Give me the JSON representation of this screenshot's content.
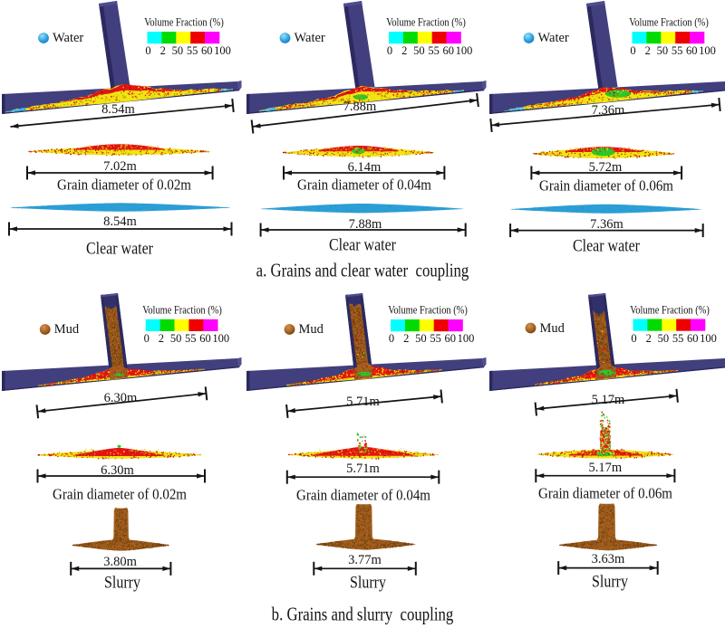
{
  "colors": {
    "background": "#ffffff",
    "text": "#141414",
    "structure": "#413f7d",
    "structure_dark": "#2b295e",
    "structure_light": "#4f4c90",
    "water_fill": "#2b9ed5",
    "water_fill_light": "#74c9ec",
    "water_fill_dark": "#1a81b5",
    "mud_fill": "#a4611f",
    "mud_fill_dark": "#7c4511",
    "mud_fill_deep": "#58300a",
    "sediment_yellow": "#f0e512",
    "sediment_olive": "#b5a404",
    "sediment_red": "#e51414",
    "sediment_red_dark": "#b40808",
    "sediment_green": "#28c828",
    "sediment_cyan": "#35b4e4",
    "arrow": "#141414"
  },
  "legend": {
    "title": "Volume Fraction (%)",
    "swatches": [
      "#00ffff",
      "#00dc00",
      "#ffff00",
      "#ee0000",
      "#ff00ff"
    ],
    "ticks": [
      "0",
      "2",
      "50",
      "55",
      "60",
      "100"
    ]
  },
  "panel_a": {
    "caption": "a. Grains and clear water  coupling",
    "marker_label": "Water",
    "columns": [
      {
        "top_measure": "8.54m",
        "mid_measure": "7.02m",
        "grain_label": "Grain diameter of 0.02m",
        "bottom_measure": "8.54m",
        "bottom_label": "Clear water"
      },
      {
        "top_measure": "7.88m",
        "mid_measure": "6.14m",
        "grain_label": "Grain diameter of 0.04m",
        "bottom_measure": "7.88m",
        "bottom_label": "Clear water"
      },
      {
        "top_measure": "7.36m",
        "mid_measure": "5.72m",
        "grain_label": "Grain diameter of 0.06m",
        "bottom_measure": "7.36m",
        "bottom_label": "Clear water"
      }
    ]
  },
  "panel_b": {
    "caption": "b. Grains and slurry  coupling",
    "marker_label": "Mud",
    "columns": [
      {
        "top_measure": "6.30m",
        "mid_measure": "6.30m",
        "grain_label": "Grain diameter of 0.02m",
        "bottom_measure": "3.80m",
        "bottom_label": "Slurry"
      },
      {
        "top_measure": "5.71m",
        "mid_measure": "5.71m",
        "grain_label": "Grain diameter of 0.04m",
        "bottom_measure": "3.77m",
        "bottom_label": "Slurry"
      },
      {
        "top_measure": "5.17m",
        "mid_measure": "5.17m",
        "grain_label": "Grain diameter of 0.06m",
        "bottom_measure": "3.63m",
        "bottom_label": "Slurry"
      }
    ]
  }
}
